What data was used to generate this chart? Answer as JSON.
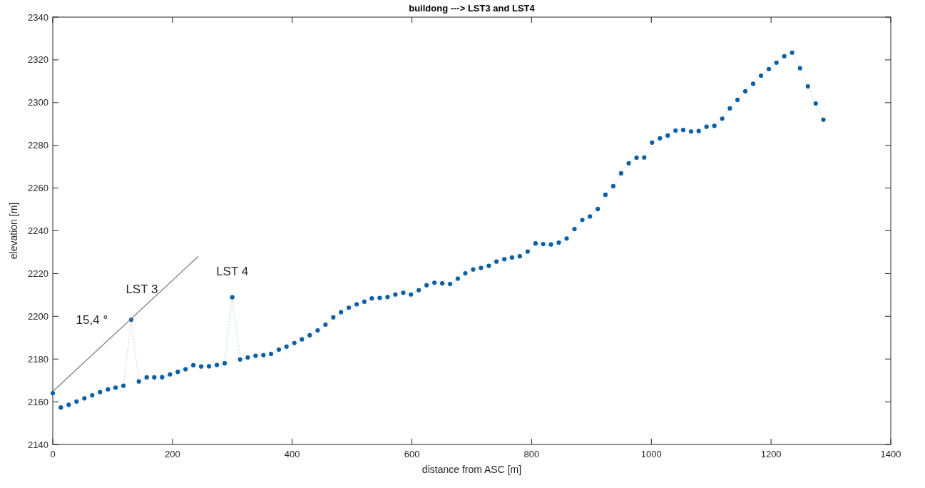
{
  "chart_data": {
    "type": "line",
    "title": "buildong ---> LST3 and LST4",
    "xlabel": "distance from ASC [m]",
    "ylabel": "elevation [m]",
    "xlim": [
      0,
      1400
    ],
    "xticks": [
      0,
      200,
      400,
      600,
      800,
      1000,
      1200,
      1400
    ],
    "ylim": [
      2140,
      2340
    ],
    "yticks": [
      2140,
      2160,
      2180,
      2200,
      2220,
      2240,
      2260,
      2280,
      2300,
      2320,
      2340
    ],
    "grid": false,
    "marker": "circle",
    "line_style": "dotted",
    "series": [
      {
        "color": "#0b5fa5",
        "x": [
          0,
          13.5,
          26.6,
          39.7,
          52.8,
          65.9,
          79,
          92.1,
          104.9,
          118,
          131,
          143.8,
          156.9,
          169.6,
          182.7,
          195.8,
          208.9,
          221.7,
          234.8,
          247.9,
          261,
          274.1,
          287.2,
          299.9,
          313,
          325.7,
          338.8,
          351.9,
          364.6,
          377.7,
          390.5,
          403.6,
          416.2,
          429.3,
          442.5,
          455.6,
          468.6,
          481.5,
          494.6,
          507.7,
          520.4,
          533,
          546.2,
          559.3,
          572.4,
          585.5,
          598.3,
          611.4,
          624.5,
          637.6,
          650.7,
          663.8,
          676.6,
          689.2,
          702.3,
          715.4,
          728.5,
          741.3,
          754.4,
          767.2,
          780.3,
          793.4,
          806.5,
          819.2,
          832.3,
          845.4,
          858.5,
          871.6,
          884.7,
          897.4,
          910.5,
          923.3,
          936.4,
          949.5,
          962.2,
          975.3,
          988.1,
          1001.2,
          1014.3,
          1027.4,
          1040.5,
          1053.3,
          1066.4,
          1079.1,
          1092.2,
          1105.3,
          1118.4,
          1131.2,
          1143.9,
          1157,
          1170.1,
          1183.2,
          1196.3,
          1209,
          1222.1,
          1235.2,
          1248.4,
          1261.5,
          1274.6,
          1287.4
        ],
        "values": [
          2164,
          2157.3,
          2158.6,
          2160.1,
          2161.6,
          2163,
          2164.5,
          2165.8,
          2166.6,
          2167.5,
          2198.4,
          2169.5,
          2171.4,
          2171.4,
          2171.5,
          2172.8,
          2174,
          2175.2,
          2177.1,
          2176.5,
          2176.6,
          2177.2,
          2178,
          2208.9,
          2179.8,
          2180.7,
          2181.5,
          2181.8,
          2182.4,
          2184.4,
          2185.8,
          2187.5,
          2189.2,
          2191.1,
          2193.4,
          2196.1,
          2199.5,
          2201.9,
          2204,
          2205.6,
          2206.8,
          2208.4,
          2208.6,
          2209,
          2210.2,
          2211,
          2210.2,
          2212.2,
          2214.5,
          2215.7,
          2215.4,
          2215.1,
          2217.6,
          2220.1,
          2221.9,
          2222.6,
          2223.6,
          2225.6,
          2226.7,
          2227.5,
          2228.1,
          2230.3,
          2234.1,
          2233.8,
          2233.6,
          2234.5,
          2236.4,
          2240.8,
          2245.1,
          2246.7,
          2250.2,
          2256.9,
          2260.9,
          2266.9,
          2271.6,
          2274.2,
          2274.3,
          2281.3,
          2283.3,
          2284.6,
          2286.9,
          2287.2,
          2286.5,
          2286.7,
          2288.7,
          2289.1,
          2292.5,
          2297.3,
          2301.3,
          2305.3,
          2308.8,
          2312.6,
          2315.7,
          2318.7,
          2321.7,
          2323.4,
          2316.1,
          2307.6,
          2299.6,
          2292
        ]
      },
      {
        "type": "line",
        "color": "#808080",
        "x": [
          0,
          243
        ],
        "values": [
          2164.8,
          2228
        ],
        "line_style": "solid",
        "marker": "none"
      }
    ],
    "annotations": [
      {
        "text": "LST 3",
        "x": 131,
        "y": 2198.4
      },
      {
        "text": "LST 4",
        "x": 299.9,
        "y": 2208.9
      },
      {
        "text": "15,4 °",
        "x": 100,
        "y": 2190.8
      }
    ]
  }
}
